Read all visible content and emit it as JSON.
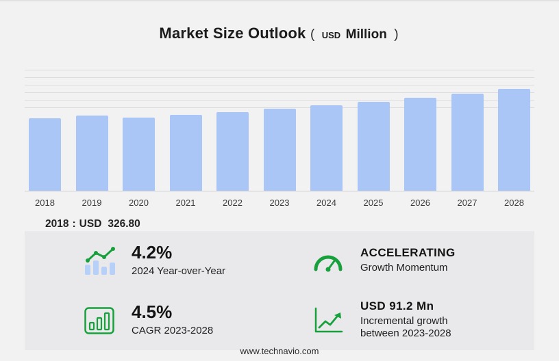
{
  "title": {
    "main": "Market Size Outlook",
    "paren_open": "(",
    "unit_currency": "USD",
    "unit_word": "Million",
    "paren_close": ")"
  },
  "chart_data": {
    "type": "bar",
    "title": "Market Size Outlook (USD Million)",
    "categories": [
      "2018",
      "2019",
      "2020",
      "2021",
      "2022",
      "2023",
      "2024",
      "2025",
      "2026",
      "2027",
      "2028"
    ],
    "values": [
      326.8,
      340.1,
      330.5,
      344.2,
      356.8,
      370.4,
      386.0,
      401.5,
      418.9,
      438.6,
      461.6
    ],
    "unit": "USD Million",
    "xlabel": "",
    "ylabel": "",
    "ylim": [
      0,
      550
    ],
    "grid": true,
    "legend": "none",
    "bar_color": "#a9c6f6"
  },
  "annotation": {
    "year": "2018",
    "separator": ":",
    "currency": "USD",
    "value": "326.80"
  },
  "stats": {
    "yoy": {
      "value": "4.2%",
      "label": "2024 Year-over-Year"
    },
    "momentum": {
      "value": "ACCELERATING",
      "label": "Growth Momentum"
    },
    "cagr": {
      "value": "4.5%",
      "label": "CAGR 2023-2028"
    },
    "incremental": {
      "value": "USD 91.2 Mn",
      "label": "Incremental growth between 2023-2028"
    }
  },
  "footer": {
    "website": "www.technavio.com"
  },
  "colors": {
    "accent_green": "#18a03c",
    "bar_blue": "#a9c6f6",
    "icon_light_blue": "#b7d0f8",
    "panel_bg": "#e9e9eb",
    "page_bg": "#f2f2f3"
  }
}
